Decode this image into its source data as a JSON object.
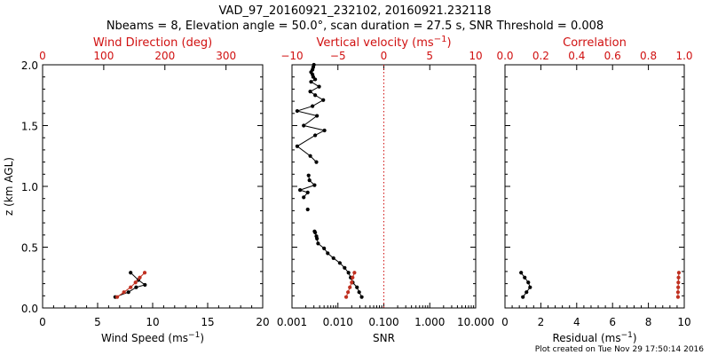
{
  "figure": {
    "title_line1": "VAD_97_20160921_232102, 20160921.232118",
    "title_line2": "Nbeams = 8, Elevation angle = 50.0°, scan duration = 27.5 s, SNR Threshold = 0.008",
    "footer": "Plot created on Tue Nov 29 17:50:14 2016"
  },
  "colors": {
    "axis": "#000000",
    "secondary": "#d01010",
    "series_primary": "#000000",
    "series_secondary": "#c03020"
  },
  "chart_data": [
    {
      "type": "line",
      "name": "wind",
      "title": "",
      "xlabel": "Wind Speed (ms",
      "xlabel_sup": "−1",
      "xlabel_tail": ")",
      "ylabel": "z (km AGL)",
      "x_top_label": "Wind Direction (deg)",
      "xlim": [
        0,
        20
      ],
      "xticks": [
        "0",
        "5",
        "10",
        "15",
        "20"
      ],
      "x_top_lim": [
        0,
        360
      ],
      "x_top_ticks": [
        "0",
        "100",
        "200",
        "300"
      ],
      "ylim": [
        0,
        2.0
      ],
      "yticks": [
        "0.0",
        "0.5",
        "1.0",
        "1.5",
        "2.0"
      ],
      "series": [
        {
          "name": "Wind Speed (ms-1)",
          "axis": "bottom",
          "x": [
            6.6,
            7.8,
            8.5,
            9.3,
            8.7,
            8.0
          ],
          "y": [
            0.09,
            0.13,
            0.17,
            0.19,
            0.23,
            0.29
          ]
        },
        {
          "name": "Wind Direction (deg)",
          "axis": "top",
          "x": [
            122,
            133,
            144,
            152,
            159,
            167
          ],
          "y": [
            0.09,
            0.13,
            0.17,
            0.21,
            0.25,
            0.29
          ]
        }
      ]
    },
    {
      "type": "line",
      "name": "vertical-velocity-snr",
      "title": "",
      "xlabel": "SNR",
      "x_top_label": "Vertical velocity (ms",
      "x_top_sup": "−1",
      "x_top_tail": ")",
      "xscale": "log",
      "xlim": [
        0.001,
        10
      ],
      "xticks": [
        "0.001",
        "0.010",
        "0.100",
        "1.000",
        "10.000"
      ],
      "x_top_lim": [
        -10,
        10
      ],
      "x_top_ticks": [
        "−10",
        "−5",
        "0",
        "5",
        "10"
      ],
      "ylim": [
        0,
        2.0
      ],
      "zero_line": 0,
      "series": [
        {
          "name": "SNR",
          "axis": "bottom",
          "segments": [
            {
              "x": [
                0.033,
                0.029,
                0.026,
                0.021,
                0.019,
                0.017,
                0.014,
                0.011,
                0.008,
                0.006,
                0.005,
                0.0037,
                0.0035,
                0.0034,
                0.0032,
                0.0031
              ],
              "y": [
                0.09,
                0.13,
                0.17,
                0.21,
                0.25,
                0.29,
                0.33,
                0.37,
                0.41,
                0.45,
                0.49,
                0.53,
                0.57,
                0.59,
                0.62,
                0.63
              ]
            },
            {
              "x": [
                0.0022
              ],
              "y": [
                0.81
              ]
            },
            {
              "x": [
                0.0018,
                0.0022,
                0.0015,
                0.0031,
                0.0024,
                0.0023
              ],
              "y": [
                0.91,
                0.95,
                0.97,
                1.01,
                1.05,
                1.09
              ]
            },
            {
              "x": [
                0.0034,
                0.0025,
                0.0013,
                0.0032,
                0.0051,
                0.0018,
                0.0035,
                0.0013,
                0.0028,
                0.0048,
                0.0032,
                0.0025,
                0.0039,
                0.0026,
                0.0032,
                0.0029,
                0.0028,
                0.0026,
                0.0028,
                0.0029,
                0.003
              ],
              "y": [
                1.2,
                1.25,
                1.33,
                1.42,
                1.46,
                1.5,
                1.58,
                1.62,
                1.66,
                1.71,
                1.75,
                1.78,
                1.82,
                1.86,
                1.88,
                1.9,
                1.92,
                1.94,
                1.96,
                1.98,
                2.0
              ]
            }
          ]
        },
        {
          "name": "Vertical velocity (ms-1)",
          "axis": "top",
          "x": [
            -4.1,
            -3.9,
            -3.7,
            -3.5,
            -3.4,
            -3.2
          ],
          "y": [
            0.09,
            0.13,
            0.17,
            0.21,
            0.25,
            0.29
          ]
        }
      ]
    },
    {
      "type": "line",
      "name": "correlation-residual",
      "title": "",
      "xlabel": "Residual (ms",
      "xlabel_sup": "−1",
      "xlabel_tail": ")",
      "x_top_label": "Correlation",
      "xlim": [
        0,
        10
      ],
      "xticks": [
        "0",
        "2",
        "4",
        "6",
        "8",
        "10"
      ],
      "x_top_lim": [
        0,
        1.0
      ],
      "x_top_ticks": [
        "0.0",
        "0.2",
        "0.4",
        "0.6",
        "0.8",
        "1.0"
      ],
      "ylim": [
        0,
        2.0
      ],
      "series": [
        {
          "name": "Residual (ms-1)",
          "axis": "bottom",
          "x": [
            1.0,
            1.2,
            1.4,
            1.3,
            1.1,
            0.9
          ],
          "y": [
            0.09,
            0.13,
            0.17,
            0.21,
            0.25,
            0.29
          ]
        },
        {
          "name": "Correlation",
          "axis": "top",
          "x": [
            0.965,
            0.965,
            0.966,
            0.967,
            0.968,
            0.97
          ],
          "y": [
            0.09,
            0.13,
            0.17,
            0.21,
            0.25,
            0.29
          ]
        }
      ]
    }
  ]
}
